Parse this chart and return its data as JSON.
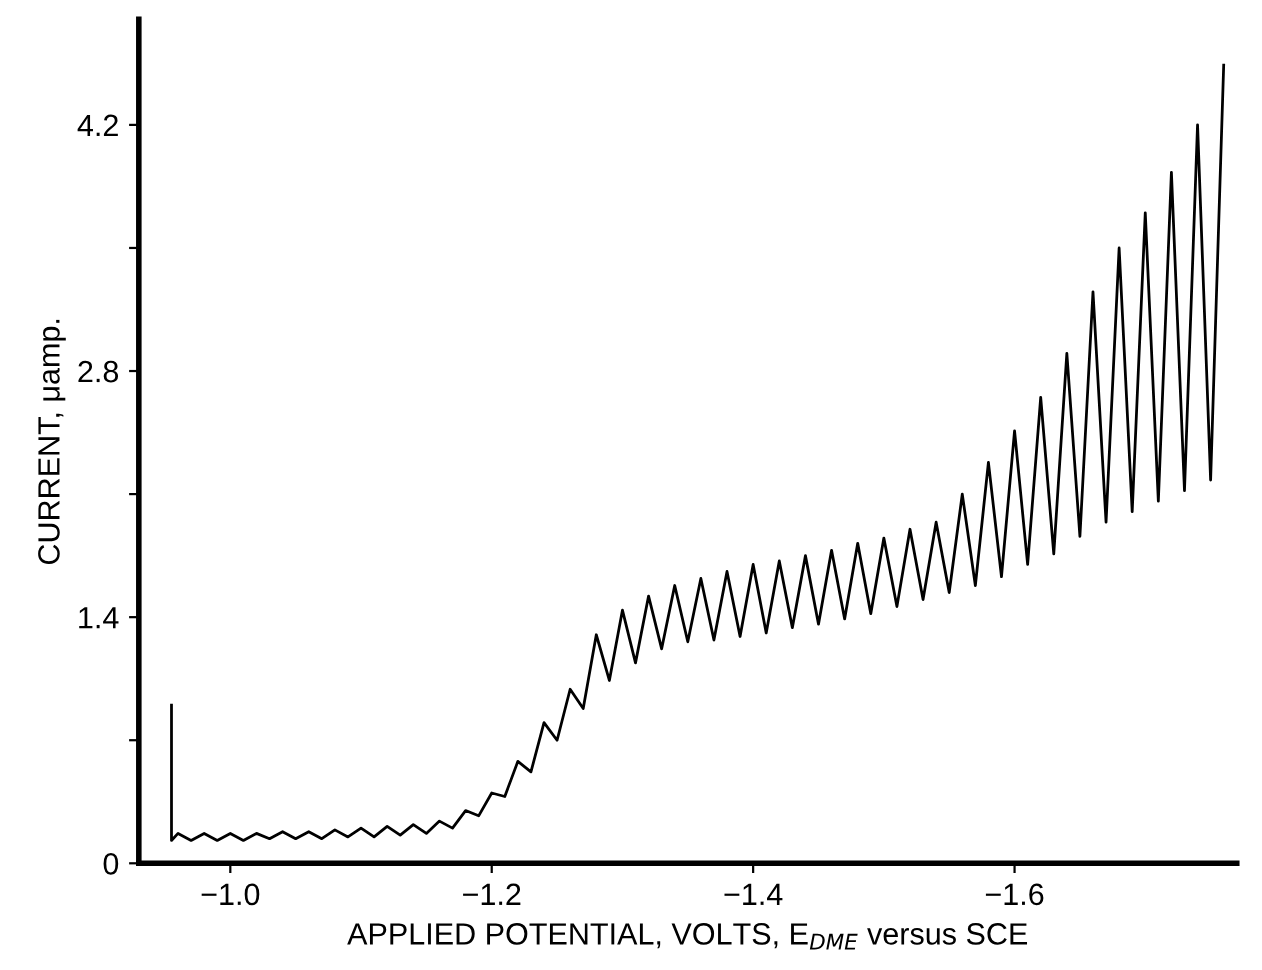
{
  "chart_data": {
    "type": "line",
    "xlabel": "APPLIED POTENTIAL, VOLTS, E$_{DME}$ versus SCE",
    "ylabel": "CURRENT, μamp.",
    "xlim": [
      -0.93,
      -1.77
    ],
    "ylim": [
      0,
      4.8
    ],
    "xticks": [
      {
        "value": -1.0,
        "label": "−1.0"
      },
      {
        "value": -1.2,
        "label": "−1.2"
      },
      {
        "value": -1.4,
        "label": "−1.4"
      },
      {
        "value": -1.6,
        "label": "−1.6"
      }
    ],
    "yticks": [
      0,
      {
        "value": 0.7,
        "label": null
      },
      1.4,
      {
        "value": 2.1,
        "label": null
      },
      2.8,
      {
        "value": 3.5,
        "label": null
      },
      4.2
    ],
    "grid": false,
    "marker": "none",
    "line_style": "solid",
    "series": [
      {
        "color": "#000000",
        "x": [
          -0.955,
          -0.955,
          -0.96,
          -0.97,
          -0.98,
          -0.99,
          -1.0,
          -1.01,
          -1.02,
          -1.03,
          -1.04,
          -1.05,
          -1.06,
          -1.07,
          -1.08,
          -1.09,
          -1.1,
          -1.11,
          -1.12,
          -1.13,
          -1.14,
          -1.15,
          -1.16,
          -1.17,
          -1.18,
          -1.19,
          -1.2,
          -1.21,
          -1.22,
          -1.23,
          -1.24,
          -1.25,
          -1.26,
          -1.27,
          -1.28,
          -1.29,
          -1.3,
          -1.31,
          -1.32,
          -1.33,
          -1.34,
          -1.35,
          -1.36,
          -1.37,
          -1.38,
          -1.39,
          -1.4,
          -1.41,
          -1.42,
          -1.43,
          -1.44,
          -1.45,
          -1.46,
          -1.47,
          -1.48,
          -1.49,
          -1.5,
          -1.51,
          -1.52,
          -1.53,
          -1.54,
          -1.55,
          -1.56,
          -1.57,
          -1.58,
          -1.59,
          -1.6,
          -1.61,
          -1.62,
          -1.63,
          -1.64,
          -1.65,
          -1.66,
          -1.67,
          -1.68,
          -1.69,
          -1.7,
          -1.71,
          -1.72,
          -1.73,
          -1.74,
          -1.75,
          -1.76
        ],
        "values": [
          0.9,
          0.13,
          0.17,
          0.13,
          0.17,
          0.13,
          0.17,
          0.13,
          0.17,
          0.14,
          0.18,
          0.14,
          0.18,
          0.14,
          0.19,
          0.15,
          0.2,
          0.15,
          0.21,
          0.16,
          0.22,
          0.17,
          0.24,
          0.2,
          0.3,
          0.27,
          0.4,
          0.38,
          0.58,
          0.52,
          0.8,
          0.7,
          0.99,
          0.88,
          1.3,
          1.04,
          1.44,
          1.14,
          1.52,
          1.22,
          1.58,
          1.26,
          1.62,
          1.27,
          1.66,
          1.29,
          1.7,
          1.31,
          1.72,
          1.34,
          1.75,
          1.36,
          1.78,
          1.39,
          1.82,
          1.42,
          1.85,
          1.46,
          1.9,
          1.5,
          1.94,
          1.54,
          2.1,
          1.58,
          2.28,
          1.63,
          2.46,
          1.7,
          2.65,
          1.76,
          2.9,
          1.86,
          3.25,
          1.94,
          3.5,
          2.0,
          3.7,
          2.06,
          3.93,
          2.12,
          4.2,
          2.18,
          4.54
        ]
      }
    ]
  }
}
